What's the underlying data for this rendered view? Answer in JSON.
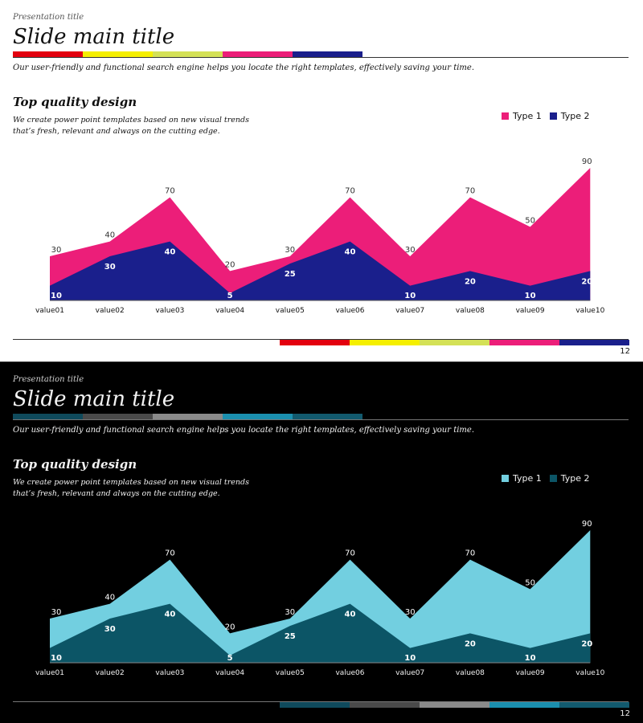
{
  "slides": [
    {
      "theme": "light",
      "presentation_title": "Presentation title",
      "main_title": "Slide main title",
      "subtitle": "Our user-friendly and functional search engine helps you locate the right templates, effectively saving your time.",
      "section_title": "Top quality design",
      "description": "We create power point templates based on new visual trends that’s fresh, relevant and always on the cutting edge.",
      "page_number": "12",
      "colors": {
        "text": "#111111",
        "top_stripe": [
          "#e3000f",
          "#f5ef00",
          "#d4e157",
          "#ec1e79",
          "#1a1f8c"
        ],
        "bottom_stripe": [
          "#e3000f",
          "#f5ef00",
          "#d4e157",
          "#ec1e79",
          "#1a1f8c"
        ]
      }
    },
    {
      "theme": "dark",
      "presentation_title": "Presentation title",
      "main_title": "Slide main title",
      "subtitle": "Our user-friendly and functional search engine helps you locate the right templates, effectively saving your time.",
      "section_title": "Top quality design",
      "description": "We create power point templates based on new visual trends that’s fresh, relevant and always on the cutting edge.",
      "page_number": "12",
      "colors": {
        "text": "#f2f2f2",
        "top_stripe": [
          "#0f4a5c",
          "#4a4a4a",
          "#8a8a8a",
          "#1b8fae",
          "#125a6e"
        ],
        "bottom_stripe": [
          "#0f4a5c",
          "#4a4a4a",
          "#8a8a8a",
          "#1b8fae",
          "#125a6e"
        ]
      }
    }
  ],
  "chart_data": [
    {
      "type": "area",
      "categories": [
        "value01",
        "value02",
        "value03",
        "value04",
        "value05",
        "value06",
        "value07",
        "value08",
        "value09",
        "value10"
      ],
      "series": [
        {
          "name": "Type 1",
          "values": [
            30,
            40,
            70,
            20,
            30,
            70,
            30,
            70,
            50,
            90
          ],
          "color": "#ec1e79",
          "label_color": "#333333"
        },
        {
          "name": "Type 2",
          "values": [
            10,
            30,
            40,
            5,
            25,
            40,
            10,
            20,
            10,
            20
          ],
          "color": "#1a1f8c",
          "label_color": "#ffffff"
        }
      ],
      "ylim": [
        0,
        90
      ],
      "grid": false,
      "legend": "top-right",
      "axis_color": "#555555",
      "tick_color": "#111111"
    },
    {
      "type": "area",
      "categories": [
        "value01",
        "value02",
        "value03",
        "value04",
        "value05",
        "value06",
        "value07",
        "value08",
        "value09",
        "value10"
      ],
      "series": [
        {
          "name": "Type 1",
          "values": [
            30,
            40,
            70,
            20,
            30,
            70,
            30,
            70,
            50,
            90
          ],
          "color": "#72cfe0",
          "label_color": "#ffffff"
        },
        {
          "name": "Type 2",
          "values": [
            10,
            30,
            40,
            5,
            25,
            40,
            10,
            20,
            10,
            20
          ],
          "color": "#0c5566",
          "label_color": "#ffffff"
        }
      ],
      "ylim": [
        0,
        90
      ],
      "grid": false,
      "legend": "top-right",
      "axis_color": "#888888",
      "tick_color": "#f2f2f2"
    }
  ]
}
